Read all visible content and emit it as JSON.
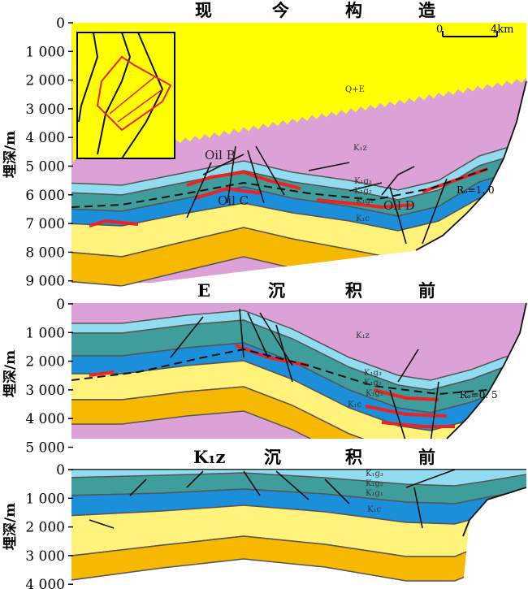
{
  "panels": [
    {
      "title": [
        "现",
        "今",
        "构",
        "造"
      ],
      "y_ticks": [
        "0",
        "1 000",
        "2 000",
        "3 000",
        "4 000",
        "5 000",
        "6 000",
        "7 000",
        "8 000",
        "9 000"
      ],
      "y_label": "埋深/m",
      "labels": {
        "qe": "Q+E",
        "k1z": "K₁z",
        "g3": "K₁g₃",
        "g2": "K₁g₂",
        "g1": "K₁g₁",
        "c": "K₁c"
      },
      "oil": [
        "Oil B",
        "Oil C",
        "Oil D"
      ],
      "ro": "Rₒ=1. 0",
      "scale_bar": {
        "start": "0",
        "end": "4km"
      }
    },
    {
      "title": [
        "E",
        "沉",
        "积",
        "前"
      ],
      "y_ticks": [
        "0",
        "1 000",
        "2 000",
        "3 000",
        "4 000",
        "5 000"
      ],
      "y_label": "埋深/m",
      "labels": {
        "k1z": "K₁z",
        "g3": "K₁g₃",
        "g2": "K₁g₂",
        "g1": "K₁g₁",
        "c": "K₁c"
      },
      "ro": "Rₒ=0. 5"
    },
    {
      "title": [
        "K₁z",
        "沉",
        "积",
        "前"
      ],
      "y_ticks": [
        "0",
        "1 000",
        "2 000",
        "3 000",
        "4 000"
      ],
      "y_label": "埋深/m",
      "labels": {
        "g3": "K₁g₃",
        "g2": "K₁g₂",
        "g1": "K₁g₁",
        "c": "K₁c"
      }
    }
  ],
  "colors": {
    "quaternary_tertiary": "#ffff00",
    "k1z": "#dca2d8",
    "k1g3": "#92dcf2",
    "k1g2": "#3f9e9c",
    "k1g1": "#1c8fdb",
    "k1c": "#fff27a",
    "lower": "#f6b800",
    "oil": "#ee2222"
  }
}
